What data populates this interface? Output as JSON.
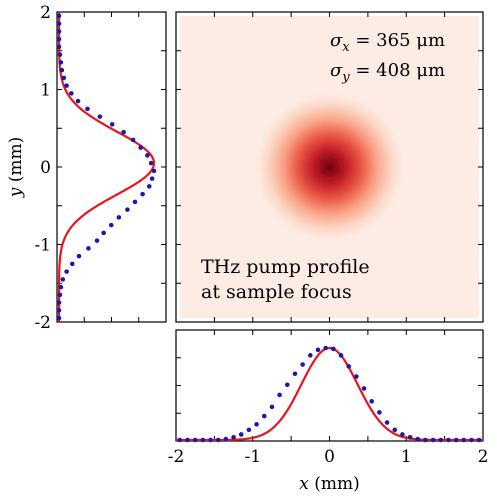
{
  "chart_data": [
    {
      "type": "heatmap",
      "xlim": [
        -2,
        2
      ],
      "ylim": [
        -2,
        2
      ],
      "colormap": "Reds",
      "peak": {
        "x": 0.0,
        "y": 0.0
      },
      "sigma_x_um": 365,
      "sigma_y_um": 408,
      "annotations": {
        "sigma_x": "σx = 365 μm",
        "sigma_y": "σy = 408 μm",
        "caption_line1": "THz pump profile",
        "caption_line2": "at sample focus"
      }
    },
    {
      "type": "line",
      "panel": "left-vertical-profile",
      "ylabel": "y (mm)",
      "ylim": [
        -2,
        2
      ],
      "yticks": [
        "-2",
        "-1",
        "0",
        "1",
        "2"
      ],
      "fit": {
        "type": "gaussian",
        "center": 0.05,
        "sigma_mm": 0.408,
        "color": "#e8141e"
      },
      "points": {
        "color": "#1a1aa6",
        "y": [
          -1.95,
          -1.85,
          -1.75,
          -1.65,
          -1.55,
          -1.45,
          -1.35,
          -1.25,
          -1.15,
          -1.05,
          -0.95,
          -0.85,
          -0.75,
          -0.65,
          -0.55,
          -0.45,
          -0.35,
          -0.25,
          -0.15,
          -0.05,
          0.05,
          0.15,
          0.25,
          0.35,
          0.45,
          0.55,
          0.65,
          0.75,
          0.85,
          0.95,
          1.05,
          1.15,
          1.25,
          1.35,
          1.45,
          1.55,
          1.65,
          1.75,
          1.85,
          1.95
        ],
        "value": [
          0.0,
          0.0,
          0.0,
          0.01,
          0.02,
          0.04,
          0.08,
          0.14,
          0.21,
          0.31,
          0.4,
          0.47,
          0.55,
          0.63,
          0.72,
          0.8,
          0.88,
          0.95,
          0.98,
          1.0,
          0.97,
          0.93,
          0.86,
          0.78,
          0.68,
          0.56,
          0.43,
          0.3,
          0.2,
          0.13,
          0.08,
          0.05,
          0.03,
          0.02,
          0.01,
          0.0,
          0.0,
          0.0,
          0.0,
          0.0
        ]
      }
    },
    {
      "type": "line",
      "panel": "bottom-horizontal-profile",
      "xlabel": "x (mm)",
      "xlim": [
        -2,
        2
      ],
      "xticks": [
        "-2",
        "-1",
        "0",
        "1",
        "2"
      ],
      "fit": {
        "type": "gaussian",
        "center": 0.0,
        "sigma_mm": 0.365,
        "color": "#e8141e"
      },
      "points": {
        "color": "#1a1aa6",
        "x": [
          -1.95,
          -1.85,
          -1.75,
          -1.65,
          -1.55,
          -1.45,
          -1.35,
          -1.25,
          -1.15,
          -1.05,
          -0.95,
          -0.85,
          -0.75,
          -0.65,
          -0.55,
          -0.45,
          -0.35,
          -0.25,
          -0.15,
          -0.05,
          0.05,
          0.15,
          0.25,
          0.35,
          0.45,
          0.55,
          0.65,
          0.75,
          0.85,
          0.95,
          1.05,
          1.15,
          1.25,
          1.35,
          1.45,
          1.55,
          1.65,
          1.75,
          1.85,
          1.95
        ],
        "value": [
          0.0,
          0.0,
          0.0,
          0.0,
          0.0,
          0.0,
          0.01,
          0.03,
          0.06,
          0.11,
          0.17,
          0.26,
          0.36,
          0.49,
          0.6,
          0.72,
          0.82,
          0.92,
          0.98,
          1.0,
          0.99,
          0.92,
          0.8,
          0.69,
          0.56,
          0.42,
          0.3,
          0.19,
          0.11,
          0.06,
          0.03,
          0.01,
          0.0,
          0.0,
          0.0,
          0.0,
          0.0,
          0.0,
          0.0,
          0.0
        ]
      }
    }
  ]
}
